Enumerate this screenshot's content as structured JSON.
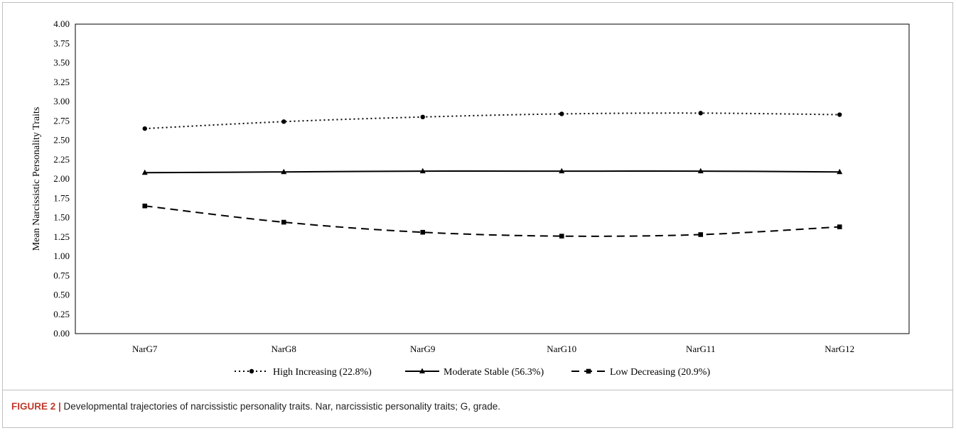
{
  "chart_data": {
    "type": "line",
    "categories": [
      "NarG7",
      "NarG8",
      "NarG9",
      "NarG10",
      "NarG11",
      "NarG12"
    ],
    "ylabel": "Mean Narcissistic Personality Traits",
    "ylim": [
      0,
      4
    ],
    "yticks": [
      "0.00",
      "0.25",
      "0.50",
      "0.75",
      "1.00",
      "1.25",
      "1.50",
      "1.75",
      "2.00",
      "2.25",
      "2.50",
      "2.75",
      "3.00",
      "3.25",
      "3.50",
      "3.75",
      "4.00"
    ],
    "grid": false,
    "legend_position": "bottom",
    "series": [
      {
        "name": "High Increasing (22.8%)",
        "values": [
          2.65,
          2.74,
          2.8,
          2.84,
          2.85,
          2.83
        ],
        "line": "dotted",
        "marker": "circle"
      },
      {
        "name": "Moderate Stable (56.3%)",
        "values": [
          2.08,
          2.09,
          2.1,
          2.1,
          2.1,
          2.09
        ],
        "line": "solid",
        "marker": "triangle"
      },
      {
        "name": "Low Decreasing (20.9%)",
        "values": [
          1.65,
          1.44,
          1.31,
          1.26,
          1.28,
          1.38
        ],
        "line": "dashed",
        "marker": "square"
      }
    ]
  },
  "caption": {
    "label": "FIGURE 2 |",
    "text": " Developmental trajectories of narcissistic personality traits. Nar, narcissistic personality traits; G, grade."
  }
}
